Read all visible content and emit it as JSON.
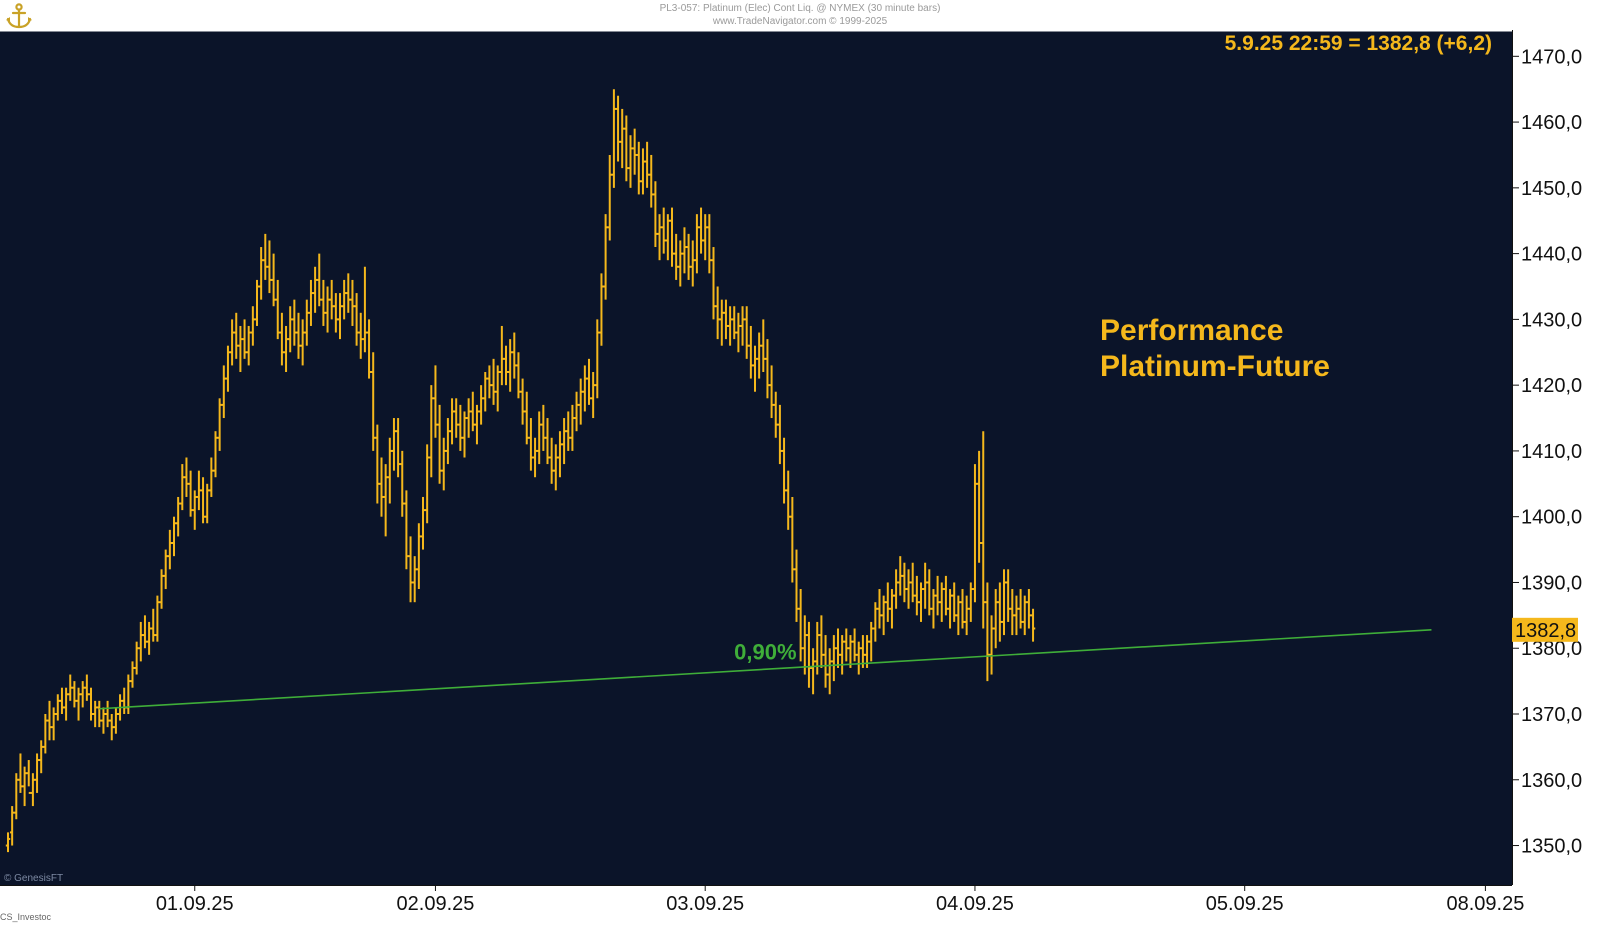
{
  "header": {
    "line1": "PL3-057: Platinum (Elec) Cont Liq. @ NYMEX (30 minute bars)",
    "line2": "www.TradeNavigator.com © 1999-2025"
  },
  "footer": {
    "source": "© GenesisFT",
    "left": "CS_Investoc"
  },
  "colors": {
    "background": "#0b1429",
    "bars": "#f5b81c",
    "trendline": "#3fae39",
    "frame": "#ffffff",
    "axis_bg": "#ffffff"
  },
  "icons": {
    "logo": "anchor-logo-icon"
  },
  "chart_data": {
    "type": "ohlc-bar",
    "title": "",
    "annotation_title_line1": "Performance",
    "annotation_title_line2": "Platinum-Future",
    "last_quote": "5.9.25 22:59 = 1382,8 (+6,2)",
    "last_price_label": "1382,8",
    "last_price": 1382.8,
    "ylim": [
      1344,
      1474
    ],
    "y_ticks": [
      1350,
      1360,
      1370,
      1380,
      1390,
      1400,
      1410,
      1420,
      1430,
      1440,
      1450,
      1460,
      1470
    ],
    "y_tick_labels": [
      "1350,0",
      "1360,0",
      "1370,0",
      "1380,0",
      "1390,0",
      "1400,0",
      "1410,0",
      "1420,0",
      "1430,0",
      "1440,0",
      "1450,0",
      "1460,0",
      "1470,0"
    ],
    "x_tick_labels": [
      "01.09.25",
      "02.09.25",
      "03.09.25",
      "04.09.25",
      "05.09.25",
      "08.09.25"
    ],
    "x_tick_bar_index": [
      45,
      103,
      168,
      233,
      298,
      356
    ],
    "trendline": {
      "label": "0,90%",
      "start": {
        "bar": 22,
        "price": 1370.8
      },
      "end": {
        "bar": 343,
        "price": 1382.8
      }
    },
    "bars": [
      [
        1350,
        1352,
        1349,
        1351
      ],
      [
        1352,
        1356,
        1350,
        1355
      ],
      [
        1355,
        1361,
        1354,
        1360
      ],
      [
        1360,
        1364,
        1358,
        1359
      ],
      [
        1359,
        1362,
        1356,
        1361
      ],
      [
        1361,
        1363,
        1359,
        1358
      ],
      [
        1358,
        1361,
        1356,
        1360
      ],
      [
        1360,
        1364,
        1358,
        1363
      ],
      [
        1363,
        1366,
        1361,
        1365
      ],
      [
        1365,
        1370,
        1364,
        1369
      ],
      [
        1369,
        1372,
        1366,
        1368
      ],
      [
        1368,
        1371,
        1366,
        1370
      ],
      [
        1370,
        1373,
        1369,
        1372
      ],
      [
        1372,
        1374,
        1370,
        1371
      ],
      [
        1371,
        1374,
        1369,
        1373
      ],
      [
        1373,
        1376,
        1372,
        1374
      ],
      [
        1374,
        1375,
        1371,
        1372
      ],
      [
        1372,
        1374,
        1369,
        1373
      ],
      [
        1373,
        1375,
        1371,
        1374
      ],
      [
        1374,
        1376,
        1372,
        1373
      ],
      [
        1373,
        1374,
        1369,
        1370
      ],
      [
        1370,
        1372,
        1368,
        1371
      ],
      [
        1371,
        1372,
        1368,
        1369
      ],
      [
        1369,
        1371,
        1367,
        1370
      ],
      [
        1370,
        1372,
        1368,
        1369
      ],
      [
        1369,
        1370,
        1366,
        1368
      ],
      [
        1368,
        1371,
        1367,
        1370
      ],
      [
        1370,
        1373,
        1369,
        1372
      ],
      [
        1372,
        1374,
        1370,
        1371
      ],
      [
        1371,
        1376,
        1370,
        1375
      ],
      [
        1375,
        1378,
        1374,
        1377
      ],
      [
        1377,
        1381,
        1376,
        1380
      ],
      [
        1380,
        1384,
        1378,
        1382
      ],
      [
        1382,
        1385,
        1380,
        1381
      ],
      [
        1381,
        1384,
        1379,
        1383
      ],
      [
        1383,
        1386,
        1381,
        1382
      ],
      [
        1382,
        1388,
        1381,
        1387
      ],
      [
        1387,
        1392,
        1386,
        1391
      ],
      [
        1391,
        1395,
        1389,
        1394
      ],
      [
        1394,
        1398,
        1392,
        1396
      ],
      [
        1396,
        1400,
        1394,
        1399
      ],
      [
        1399,
        1403,
        1397,
        1402
      ],
      [
        1402,
        1408,
        1401,
        1406
      ],
      [
        1406,
        1409,
        1403,
        1405
      ],
      [
        1405,
        1407,
        1400,
        1401
      ],
      [
        1401,
        1404,
        1398,
        1403
      ],
      [
        1403,
        1407,
        1401,
        1404
      ],
      [
        1404,
        1406,
        1399,
        1400
      ],
      [
        1400,
        1405,
        1399,
        1404
      ],
      [
        1404,
        1409,
        1403,
        1407
      ],
      [
        1407,
        1413,
        1406,
        1412
      ],
      [
        1412,
        1418,
        1410,
        1417
      ],
      [
        1417,
        1423,
        1415,
        1421
      ],
      [
        1421,
        1426,
        1419,
        1425
      ],
      [
        1425,
        1430,
        1423,
        1428
      ],
      [
        1428,
        1431,
        1424,
        1426
      ],
      [
        1426,
        1429,
        1422,
        1427
      ],
      [
        1427,
        1430,
        1424,
        1425
      ],
      [
        1425,
        1429,
        1423,
        1428
      ],
      [
        1428,
        1432,
        1426,
        1430
      ],
      [
        1430,
        1436,
        1429,
        1435
      ],
      [
        1435,
        1441,
        1433,
        1439
      ],
      [
        1439,
        1443,
        1436,
        1438
      ],
      [
        1438,
        1442,
        1434,
        1436
      ],
      [
        1436,
        1440,
        1432,
        1433
      ],
      [
        1433,
        1436,
        1427,
        1428
      ],
      [
        1428,
        1431,
        1423,
        1425
      ],
      [
        1425,
        1429,
        1422,
        1427
      ],
      [
        1427,
        1432,
        1425,
        1430
      ],
      [
        1430,
        1433,
        1426,
        1428
      ],
      [
        1428,
        1431,
        1424,
        1426
      ],
      [
        1426,
        1430,
        1423,
        1428
      ],
      [
        1428,
        1433,
        1426,
        1431
      ],
      [
        1431,
        1436,
        1429,
        1434
      ],
      [
        1434,
        1438,
        1431,
        1436
      ],
      [
        1436,
        1440,
        1432,
        1433
      ],
      [
        1433,
        1436,
        1429,
        1431
      ],
      [
        1431,
        1435,
        1428,
        1433
      ],
      [
        1433,
        1436,
        1430,
        1432
      ],
      [
        1432,
        1434,
        1428,
        1430
      ],
      [
        1430,
        1434,
        1427,
        1432
      ],
      [
        1432,
        1436,
        1430,
        1434
      ],
      [
        1434,
        1437,
        1431,
        1433
      ],
      [
        1433,
        1436,
        1429,
        1432
      ],
      [
        1432,
        1434,
        1426,
        1428
      ],
      [
        1428,
        1431,
        1424,
        1427
      ],
      [
        1427,
        1438,
        1425,
        1428
      ],
      [
        1428,
        1430,
        1421,
        1422
      ],
      [
        1422,
        1425,
        1410,
        1412
      ],
      [
        1412,
        1414,
        1402,
        1405
      ],
      [
        1405,
        1409,
        1400,
        1403
      ],
      [
        1403,
        1408,
        1397,
        1406
      ],
      [
        1406,
        1412,
        1402,
        1410
      ],
      [
        1410,
        1415,
        1407,
        1413
      ],
      [
        1413,
        1415,
        1406,
        1408
      ],
      [
        1408,
        1410,
        1400,
        1402
      ],
      [
        1402,
        1404,
        1392,
        1394
      ],
      [
        1394,
        1397,
        1387,
        1390
      ],
      [
        1390,
        1394,
        1387,
        1392
      ],
      [
        1392,
        1399,
        1389,
        1397
      ],
      [
        1397,
        1403,
        1395,
        1401
      ],
      [
        1401,
        1411,
        1399,
        1409
      ],
      [
        1409,
        1420,
        1406,
        1418
      ],
      [
        1418,
        1423,
        1412,
        1414
      ],
      [
        1414,
        1417,
        1405,
        1407
      ],
      [
        1407,
        1412,
        1404,
        1410
      ],
      [
        1410,
        1415,
        1408,
        1413
      ],
      [
        1413,
        1418,
        1411,
        1416
      ],
      [
        1416,
        1418,
        1412,
        1414
      ],
      [
        1414,
        1417,
        1410,
        1412
      ],
      [
        1412,
        1416,
        1409,
        1415
      ],
      [
        1415,
        1418,
        1412,
        1416
      ],
      [
        1416,
        1419,
        1413,
        1414
      ],
      [
        1414,
        1417,
        1411,
        1416
      ],
      [
        1416,
        1420,
        1414,
        1418
      ],
      [
        1418,
        1422,
        1416,
        1421
      ],
      [
        1421,
        1423,
        1418,
        1420
      ],
      [
        1420,
        1424,
        1417,
        1419
      ],
      [
        1419,
        1423,
        1416,
        1422
      ],
      [
        1422,
        1429,
        1420,
        1424
      ],
      [
        1424,
        1426,
        1420,
        1422
      ],
      [
        1422,
        1427,
        1419,
        1425
      ],
      [
        1425,
        1428,
        1421,
        1423
      ],
      [
        1423,
        1425,
        1418,
        1419
      ],
      [
        1419,
        1421,
        1414,
        1416
      ],
      [
        1416,
        1419,
        1411,
        1412
      ],
      [
        1412,
        1415,
        1407,
        1409
      ],
      [
        1409,
        1412,
        1406,
        1410
      ],
      [
        1410,
        1416,
        1408,
        1414
      ],
      [
        1414,
        1417,
        1410,
        1412
      ],
      [
        1412,
        1415,
        1408,
        1409
      ],
      [
        1409,
        1412,
        1405,
        1407
      ],
      [
        1407,
        1411,
        1404,
        1409
      ],
      [
        1409,
        1413,
        1406,
        1411
      ],
      [
        1411,
        1415,
        1408,
        1413
      ],
      [
        1413,
        1416,
        1410,
        1412
      ],
      [
        1412,
        1417,
        1410,
        1415
      ],
      [
        1415,
        1419,
        1413,
        1417
      ],
      [
        1417,
        1421,
        1414,
        1419
      ],
      [
        1419,
        1423,
        1416,
        1421
      ],
      [
        1421,
        1424,
        1417,
        1418
      ],
      [
        1418,
        1422,
        1415,
        1420
      ],
      [
        1420,
        1430,
        1418,
        1428
      ],
      [
        1428,
        1437,
        1426,
        1435
      ],
      [
        1435,
        1446,
        1433,
        1444
      ],
      [
        1444,
        1455,
        1442,
        1452
      ],
      [
        1452,
        1465,
        1450,
        1462
      ],
      [
        1462,
        1464,
        1454,
        1457
      ],
      [
        1457,
        1462,
        1453,
        1459
      ],
      [
        1459,
        1461,
        1451,
        1453
      ],
      [
        1453,
        1458,
        1450,
        1456
      ],
      [
        1456,
        1459,
        1452,
        1455
      ],
      [
        1455,
        1457,
        1449,
        1451
      ],
      [
        1451,
        1456,
        1449,
        1454
      ],
      [
        1454,
        1457,
        1450,
        1452
      ],
      [
        1452,
        1455,
        1447,
        1449
      ],
      [
        1449,
        1451,
        1441,
        1443
      ],
      [
        1443,
        1446,
        1439,
        1444
      ],
      [
        1444,
        1447,
        1440,
        1442
      ],
      [
        1442,
        1446,
        1439,
        1445
      ],
      [
        1445,
        1447,
        1438,
        1440
      ],
      [
        1440,
        1443,
        1436,
        1438
      ],
      [
        1438,
        1442,
        1435,
        1440
      ],
      [
        1440,
        1444,
        1437,
        1441
      ],
      [
        1441,
        1443,
        1436,
        1438
      ],
      [
        1438,
        1442,
        1435,
        1439
      ],
      [
        1439,
        1446,
        1437,
        1444
      ],
      [
        1444,
        1447,
        1440,
        1442
      ],
      [
        1442,
        1446,
        1439,
        1444
      ],
      [
        1444,
        1446,
        1437,
        1439
      ],
      [
        1439,
        1441,
        1430,
        1432
      ],
      [
        1432,
        1435,
        1427,
        1430
      ],
      [
        1430,
        1433,
        1426,
        1431
      ],
      [
        1431,
        1433,
        1427,
        1429
      ],
      [
        1429,
        1432,
        1426,
        1430
      ],
      [
        1430,
        1432,
        1427,
        1428
      ],
      [
        1428,
        1431,
        1425,
        1429
      ],
      [
        1429,
        1432,
        1426,
        1430
      ],
      [
        1430,
        1432,
        1424,
        1426
      ],
      [
        1426,
        1429,
        1421,
        1423
      ],
      [
        1423,
        1426,
        1419,
        1424
      ],
      [
        1424,
        1428,
        1421,
        1426
      ],
      [
        1426,
        1430,
        1422,
        1424
      ],
      [
        1424,
        1427,
        1418,
        1420
      ],
      [
        1420,
        1423,
        1415,
        1417
      ],
      [
        1417,
        1419,
        1412,
        1414
      ],
      [
        1414,
        1417,
        1408,
        1410
      ],
      [
        1410,
        1412,
        1402,
        1404
      ],
      [
        1404,
        1407,
        1398,
        1400
      ],
      [
        1400,
        1403,
        1390,
        1392
      ],
      [
        1392,
        1395,
        1384,
        1386
      ],
      [
        1386,
        1389,
        1378,
        1380
      ],
      [
        1380,
        1385,
        1376,
        1382
      ],
      [
        1382,
        1384,
        1374,
        1377
      ],
      [
        1377,
        1380,
        1373,
        1378
      ],
      [
        1378,
        1384,
        1376,
        1382
      ],
      [
        1382,
        1385,
        1377,
        1379
      ],
      [
        1379,
        1382,
        1374,
        1376
      ],
      [
        1376,
        1380,
        1373,
        1378
      ],
      [
        1378,
        1382,
        1375,
        1380
      ],
      [
        1380,
        1383,
        1377,
        1379
      ],
      [
        1379,
        1382,
        1376,
        1381
      ],
      [
        1381,
        1383,
        1378,
        1380
      ],
      [
        1380,
        1382,
        1377,
        1381
      ],
      [
        1381,
        1383,
        1378,
        1379
      ],
      [
        1379,
        1381,
        1376,
        1380
      ],
      [
        1380,
        1382,
        1377,
        1379
      ],
      [
        1379,
        1382,
        1377,
        1381
      ],
      [
        1381,
        1384,
        1378,
        1383
      ],
      [
        1383,
        1387,
        1381,
        1386
      ],
      [
        1386,
        1389,
        1383,
        1385
      ],
      [
        1385,
        1388,
        1382,
        1387
      ],
      [
        1387,
        1390,
        1384,
        1386
      ],
      [
        1386,
        1389,
        1383,
        1388
      ],
      [
        1388,
        1392,
        1386,
        1390
      ],
      [
        1390,
        1394,
        1388,
        1391
      ],
      [
        1391,
        1393,
        1387,
        1389
      ],
      [
        1389,
        1392,
        1386,
        1390
      ],
      [
        1390,
        1393,
        1387,
        1388
      ],
      [
        1388,
        1391,
        1385,
        1387
      ],
      [
        1387,
        1390,
        1384,
        1389
      ],
      [
        1389,
        1393,
        1386,
        1390
      ],
      [
        1390,
        1392,
        1385,
        1386
      ],
      [
        1386,
        1389,
        1383,
        1388
      ],
      [
        1388,
        1391,
        1385,
        1387
      ],
      [
        1387,
        1390,
        1384,
        1389
      ],
      [
        1389,
        1391,
        1385,
        1386
      ],
      [
        1386,
        1389,
        1383,
        1388
      ],
      [
        1388,
        1390,
        1384,
        1385
      ],
      [
        1385,
        1388,
        1382,
        1387
      ],
      [
        1387,
        1389,
        1383,
        1384
      ],
      [
        1384,
        1388,
        1382,
        1386
      ],
      [
        1386,
        1390,
        1384,
        1389
      ],
      [
        1389,
        1408,
        1387,
        1405
      ],
      [
        1405,
        1410,
        1393,
        1396
      ],
      [
        1396,
        1413,
        1383,
        1387
      ],
      [
        1387,
        1390,
        1375,
        1379
      ],
      [
        1379,
        1385,
        1376,
        1383
      ],
      [
        1383,
        1389,
        1380,
        1387
      ],
      [
        1387,
        1390,
        1381,
        1384
      ],
      [
        1384,
        1392,
        1382,
        1390
      ],
      [
        1390,
        1392,
        1384,
        1386
      ],
      [
        1386,
        1389,
        1382,
        1385
      ],
      [
        1385,
        1388,
        1382,
        1386
      ],
      [
        1386,
        1389,
        1383,
        1384
      ],
      [
        1384,
        1388,
        1382,
        1387
      ],
      [
        1387,
        1389,
        1383,
        1385
      ],
      [
        1385,
        1386,
        1381,
        1383
      ]
    ],
    "bar_order": [
      "open",
      "high",
      "low",
      "close"
    ]
  }
}
